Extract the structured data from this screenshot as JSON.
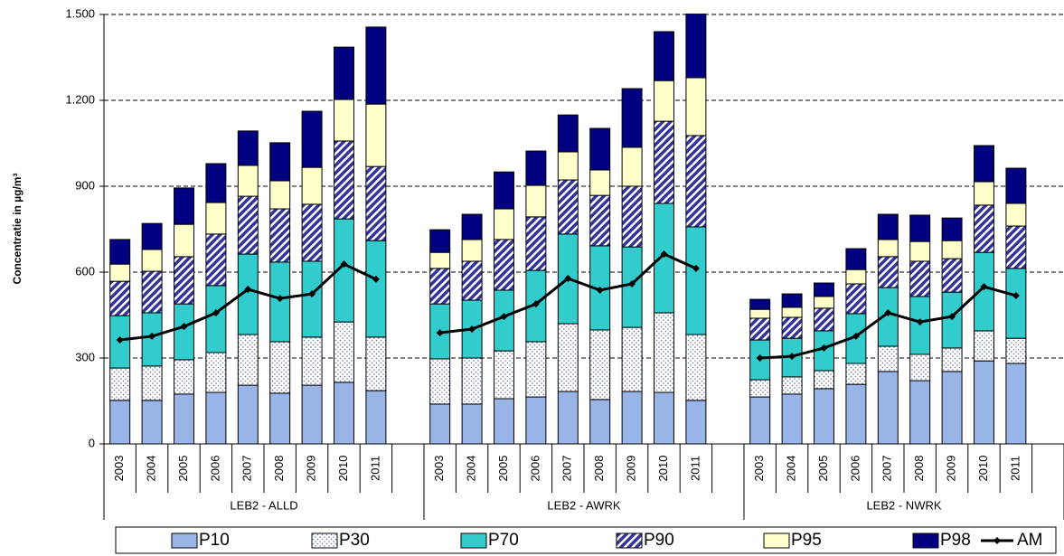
{
  "chart_data": {
    "type": "stacked-bar-line",
    "y_label": "Concentratie in µg/m³",
    "categories": [
      "2003",
      "2004",
      "2005",
      "2006",
      "2007",
      "2008",
      "2009",
      "2010",
      "2011",
      null,
      "2003",
      "2004",
      "2005",
      "2006",
      "2007",
      "2008",
      "2009",
      "2010",
      "2011",
      null,
      "2003",
      "2004",
      "2005",
      "2006",
      "2007",
      "2008",
      "2009",
      "2010",
      "2011",
      null
    ],
    "group_labels": [
      "LEB2 - ALLD",
      "LEB2 - AWRK",
      "LEB2 - NWRK"
    ],
    "ylim": [
      0,
      1500
    ],
    "yticks": [
      0,
      300,
      600,
      900,
      {
        "value": 1200,
        "label": "1.200"
      },
      {
        "value": 1500,
        "label": "1.500"
      }
    ],
    "grid": true,
    "legend": "bottom",
    "series": [
      {
        "name": "P10",
        "color": "#99B4E6",
        "values": [
          152,
          152,
          174,
          180,
          205,
          177,
          205,
          215,
          186,
          null,
          139,
          139,
          158,
          164,
          183,
          155,
          183,
          180,
          152,
          null,
          164,
          174,
          193,
          208,
          253,
          221,
          253,
          290,
          281,
          null
        ]
      },
      {
        "name": "P30",
        "color": "#FFFFFF",
        "pattern": "dots",
        "values": [
          113,
          120,
          120,
          139,
          177,
          180,
          168,
          211,
          187,
          null,
          158,
          161,
          167,
          193,
          237,
          243,
          224,
          278,
          230,
          null,
          60,
          60,
          63,
          73,
          88,
          92,
          82,
          105,
          88,
          null
        ]
      },
      {
        "name": "P70",
        "color": "#33CCCC",
        "values": [
          183,
          186,
          195,
          234,
          281,
          278,
          265,
          360,
          337,
          null,
          192,
          202,
          212,
          249,
          313,
          294,
          281,
          382,
          376,
          null,
          139,
          135,
          139,
          174,
          205,
          202,
          195,
          274,
          244,
          null
        ]
      },
      {
        "name": "P90",
        "color": "#333399",
        "pattern": "hatch",
        "values": [
          120,
          145,
          165,
          180,
          202,
          186,
          199,
          272,
          259,
          null,
          124,
          136,
          177,
          187,
          189,
          176,
          212,
          287,
          319,
          null,
          76,
          73,
          79,
          104,
          108,
          123,
          117,
          165,
          148,
          null
        ]
      },
      {
        "name": "P95",
        "color": "#FFFFCC",
        "values": [
          60,
          76,
          113,
          110,
          108,
          98,
          129,
          145,
          218,
          null,
          56,
          76,
          107,
          110,
          98,
          89,
          136,
          142,
          202,
          null,
          31,
          35,
          41,
          50,
          60,
          69,
          63,
          82,
          79,
          null
        ]
      },
      {
        "name": "P98",
        "color": "#000080",
        "values": [
          86,
          91,
          127,
          136,
          120,
          133,
          196,
          183,
          269,
          null,
          79,
          88,
          129,
          120,
          129,
          145,
          205,
          171,
          231,
          null,
          35,
          47,
          47,
          73,
          88,
          92,
          79,
          126,
          123,
          null
        ]
      },
      {
        "name": "AM",
        "color": "#000000",
        "kind": "line",
        "values": [
          363,
          376,
          410,
          458,
          540,
          508,
          524,
          628,
          575,
          null,
          388,
          401,
          445,
          489,
          578,
          537,
          559,
          663,
          613,
          null,
          300,
          306,
          335,
          376,
          458,
          426,
          445,
          549,
          518,
          null
        ]
      }
    ]
  }
}
